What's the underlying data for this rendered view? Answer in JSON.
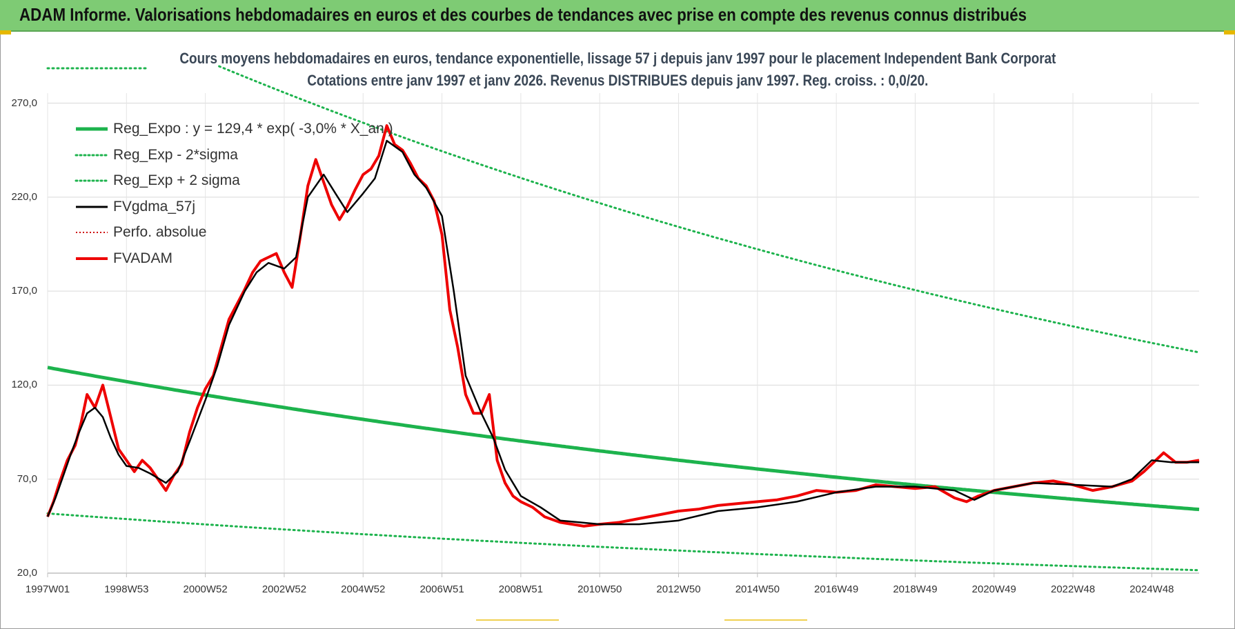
{
  "header": {
    "title": "ADAM Informe. Valorisations hebdomadaires en euros et des courbes de tendances avec prise en compte des revenus connus distribués"
  },
  "colors": {
    "banner_bg": "#7ecb74",
    "reg_expo": "#1db34d",
    "sigma_bands": "#1db34d",
    "fvgdma": "#000000",
    "perfo": "#cc0000",
    "fvadam": "#ee0000"
  },
  "chart_data": {
    "type": "line",
    "title_line1": "Cours moyens hebdomadaires en euros, tendance exponentielle, lissage 57 j depuis janv 1997  pour le placement Independent Bank Corporat",
    "title_line2": "Cotations entre janv 1997 et janv 2026. Revenus DISTRIBUES depuis janv 1997. Reg. croiss. : 0,0/20.",
    "xlabel": "",
    "ylabel": "",
    "ylim": [
      20,
      290
    ],
    "xlim": [
      1997.0,
      2026.2
    ],
    "yticks": [
      "20,0",
      "70,0",
      "120,0",
      "170,0",
      "220,0",
      "270,0"
    ],
    "ytick_values": [
      20,
      70,
      120,
      170,
      220,
      270
    ],
    "xticks": [
      "1997W01",
      "1998W53",
      "2000W52",
      "2002W52",
      "2004W52",
      "2006W51",
      "2008W51",
      "2010W50",
      "2012W50",
      "2014W50",
      "2016W49",
      "2018W49",
      "2020W49",
      "2022W48",
      "2024W48"
    ],
    "xtick_values": [
      1997.0,
      1999.0,
      2001.0,
      2003.0,
      2005.0,
      2007.0,
      2009.0,
      2011.0,
      2013.0,
      2015.0,
      2017.0,
      2019.0,
      2021.0,
      2023.0,
      2025.0
    ],
    "grid": true,
    "legend_position": "top-left",
    "legend": [
      {
        "label": "Reg_Expo : y = 129,4 * exp( -3,0% *  X_an )",
        "style": "solid-thick",
        "color": "#1db34d"
      },
      {
        "label": "Reg_Exp - 2*sigma",
        "style": "dotted",
        "color": "#1db34d"
      },
      {
        "label": "Reg_Exp + 2 sigma",
        "style": "dotted",
        "color": "#1db34d"
      },
      {
        "label": "FVgdma_57j",
        "style": "solid",
        "color": "#000000"
      },
      {
        "label": "Perfo. absolue",
        "style": "dotted",
        "color": "#cc0000"
      },
      {
        "label": "FVADAM",
        "style": "solid",
        "color": "#ee0000"
      }
    ],
    "regression": {
      "a": 129.4,
      "rate": -0.03,
      "t0": 1997.0,
      "lower_factor": 0.4,
      "upper_factor": 2.55
    },
    "series": [
      {
        "name": "FVADAM",
        "x": [
          1997.0,
          1997.15,
          1997.3,
          1997.5,
          1997.7,
          1997.85,
          1998.0,
          1998.2,
          1998.4,
          1998.6,
          1998.8,
          1999.0,
          1999.2,
          1999.4,
          1999.6,
          1999.8,
          2000.0,
          2000.2,
          2000.4,
          2000.6,
          2000.8,
          2001.0,
          2001.2,
          2001.4,
          2001.6,
          2001.8,
          2002.0,
          2002.2,
          2002.4,
          2002.6,
          2002.8,
          2003.0,
          2003.2,
          2003.4,
          2003.6,
          2003.8,
          2004.0,
          2004.2,
          2004.4,
          2004.6,
          2004.8,
          2005.0,
          2005.2,
          2005.4,
          2005.6,
          2005.8,
          2006.0,
          2006.2,
          2006.4,
          2006.6,
          2006.8,
          2007.0,
          2007.2,
          2007.4,
          2007.6,
          2007.8,
          2008.0,
          2008.2,
          2008.4,
          2008.6,
          2008.8,
          2009.0,
          2009.3,
          2009.6,
          2010.0,
          2010.3,
          2010.6,
          2011.0,
          2011.5,
          2012.0,
          2012.5,
          2013.0,
          2013.5,
          2014.0,
          2014.5,
          2015.0,
          2015.5,
          2016.0,
          2016.5,
          2017.0,
          2017.5,
          2018.0,
          2018.5,
          2019.0,
          2019.5,
          2020.0,
          2020.3,
          2020.6,
          2021.0,
          2021.5,
          2022.0,
          2022.5,
          2023.0,
          2023.5,
          2024.0,
          2024.5,
          2024.8,
          2025.0,
          2025.3,
          2025.6,
          2025.9,
          2026.2
        ],
        "values": [
          50,
          58,
          68,
          80,
          88,
          100,
          115,
          108,
          120,
          103,
          86,
          80,
          74,
          80,
          76,
          70,
          64,
          72,
          78,
          95,
          108,
          118,
          125,
          140,
          155,
          163,
          171,
          180,
          186,
          188,
          190,
          180,
          172,
          198,
          226,
          240,
          228,
          216,
          208,
          215,
          224,
          232,
          235,
          242,
          258,
          248,
          245,
          238,
          230,
          226,
          218,
          200,
          160,
          140,
          115,
          105,
          105,
          115,
          80,
          68,
          61,
          58,
          55,
          50,
          47,
          46,
          45,
          46,
          47,
          49,
          51,
          53,
          54,
          56,
          57,
          58,
          59,
          61,
          64,
          63,
          64,
          67,
          66,
          65,
          66,
          60,
          58,
          61,
          64,
          66,
          68,
          69,
          67,
          64,
          66,
          69,
          74,
          78,
          84,
          79,
          79,
          80
        ]
      },
      {
        "name": "FVgdma_57j",
        "x": [
          1997.0,
          1997.2,
          1997.4,
          1997.6,
          1997.8,
          1998.0,
          1998.2,
          1998.4,
          1998.6,
          1998.8,
          1999.0,
          1999.3,
          1999.6,
          2000.0,
          2000.3,
          2000.6,
          2001.0,
          2001.3,
          2001.6,
          2002.0,
          2002.3,
          2002.6,
          2003.0,
          2003.3,
          2003.6,
          2004.0,
          2004.3,
          2004.6,
          2005.0,
          2005.3,
          2005.6,
          2006.0,
          2006.3,
          2006.6,
          2007.0,
          2007.3,
          2007.6,
          2008.0,
          2008.3,
          2008.6,
          2009.0,
          2009.5,
          2010.0,
          2010.5,
          2011.0,
          2012.0,
          2013.0,
          2014.0,
          2015.0,
          2016.0,
          2017.0,
          2018.0,
          2019.0,
          2020.0,
          2020.5,
          2021.0,
          2022.0,
          2023.0,
          2024.0,
          2024.5,
          2025.0,
          2025.5,
          2026.2
        ],
        "values": [
          50,
          60,
          72,
          84,
          95,
          105,
          108,
          103,
          92,
          83,
          77,
          76,
          73,
          68,
          74,
          90,
          112,
          130,
          152,
          170,
          180,
          185,
          182,
          188,
          220,
          232,
          222,
          212,
          222,
          230,
          250,
          244,
          232,
          225,
          210,
          170,
          125,
          105,
          92,
          75,
          61,
          55,
          48,
          47,
          46,
          46,
          48,
          53,
          55,
          58,
          63,
          66,
          66,
          64,
          59,
          64,
          68,
          67,
          66,
          70,
          80,
          79,
          79
        ]
      }
    ]
  }
}
